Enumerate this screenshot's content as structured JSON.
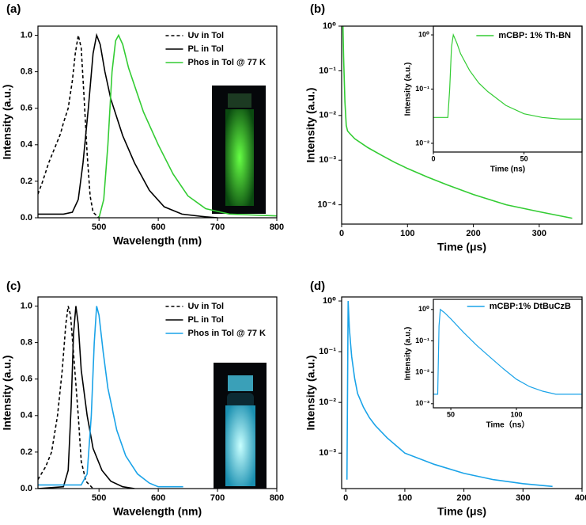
{
  "chart_data": [
    {
      "type": "line",
      "panel_label": "(a)",
      "x_label": "Wavelength (nm)",
      "y_label": "Intensity (a.u.)",
      "xlim": [
        397,
        800
      ],
      "xticks": [
        500,
        600,
        700,
        800
      ],
      "ylim": [
        0,
        1.05
      ],
      "yticks": [
        {
          "value": 0,
          "label": "0.0"
        },
        0.2,
        0.4,
        0.6,
        0.8,
        {
          "value": 1,
          "label": "1.0"
        }
      ],
      "log_y": false,
      "legend": "upper right",
      "series": [
        {
          "name": "Uv in Tol",
          "color": "#000000",
          "dash": true,
          "x": [
            397,
            405,
            415,
            425,
            435,
            440,
            448,
            455,
            460,
            465,
            470,
            475,
            480,
            485,
            490,
            500
          ],
          "values": [
            0.13,
            0.2,
            0.3,
            0.38,
            0.46,
            0.52,
            0.6,
            0.75,
            0.9,
            1.0,
            0.93,
            0.65,
            0.35,
            0.12,
            0.03,
            0.0
          ]
        },
        {
          "name": "PL in Tol",
          "color": "#000000",
          "dash": false,
          "x": [
            397,
            440,
            455,
            465,
            473,
            482,
            490,
            496,
            502,
            510,
            520,
            540,
            560,
            585,
            610,
            640,
            680,
            700
          ],
          "values": [
            0.02,
            0.02,
            0.03,
            0.1,
            0.3,
            0.6,
            0.9,
            1.0,
            0.95,
            0.8,
            0.65,
            0.45,
            0.3,
            0.15,
            0.06,
            0.02,
            0.005,
            0.0
          ]
        },
        {
          "name": "Phos in Tol @ 77 K",
          "color": "#33cc33",
          "dash": false,
          "x": [
            500,
            508,
            515,
            522,
            528,
            533,
            540,
            550,
            575,
            600,
            625,
            650,
            680,
            720,
            800
          ],
          "values": [
            0.0,
            0.1,
            0.4,
            0.8,
            0.97,
            1.0,
            0.95,
            0.82,
            0.58,
            0.4,
            0.24,
            0.12,
            0.05,
            0.02,
            0.01
          ]
        }
      ]
    },
    {
      "type": "line",
      "panel_label": "(b)",
      "x_label": "Time (μs)",
      "y_label": "Intensity (a.u.)",
      "xlim": [
        0,
        365
      ],
      "xticks": [
        0,
        100,
        200,
        300
      ],
      "ylim": [
        3.7e-05,
        1
      ],
      "yticks": [
        {
          "value": 0.0001,
          "label": "10⁻⁴"
        },
        {
          "value": 0.001,
          "label": "10⁻³"
        },
        {
          "value": 0.01,
          "label": "10⁻²"
        },
        {
          "value": 0.1,
          "label": "10⁻¹"
        },
        {
          "value": 1,
          "label": "10⁰"
        }
      ],
      "log_y": true,
      "legend": "upper right",
      "series": [
        {
          "name": "mCBP: 1% Th-BN",
          "color": "#33cc33",
          "dash": false,
          "x": [
            2,
            3,
            5,
            7,
            9,
            12,
            20,
            40,
            60,
            80,
            100,
            130,
            160,
            200,
            250,
            300,
            350
          ],
          "values": [
            1.0,
            0.2,
            0.02,
            0.006,
            0.0045,
            0.004,
            0.003,
            0.0019,
            0.0013,
            0.0009,
            0.00065,
            0.00042,
            0.00028,
            0.00017,
            0.0001,
            7e-05,
            5e-05
          ]
        }
      ]
    },
    {
      "type": "line",
      "inset": true,
      "x_label": "Time (ns)",
      "y_label": "Intensity (a.u.)",
      "xlim": [
        0,
        82
      ],
      "xticks": [
        0,
        50
      ],
      "ylim": [
        0.0069,
        1.45
      ],
      "yticks": [
        {
          "value": 0.01,
          "label": "10⁻²"
        },
        {
          "value": 0.1,
          "label": "10⁻¹"
        },
        {
          "value": 1,
          "label": "10⁰"
        }
      ],
      "log_y": true,
      "series": [
        {
          "color": "#33cc33",
          "dash": false,
          "x": [
            0,
            5,
            8,
            9,
            10,
            11,
            13,
            15,
            20,
            25,
            30,
            40,
            50,
            60,
            70,
            82
          ],
          "values": [
            0.03,
            0.03,
            0.03,
            0.1,
            0.6,
            1.0,
            0.7,
            0.45,
            0.22,
            0.13,
            0.09,
            0.05,
            0.035,
            0.03,
            0.028,
            0.028
          ]
        }
      ]
    },
    {
      "type": "line",
      "panel_label": "(c)",
      "x_label": "Wavelength (nm)",
      "y_label": "Intensity (a.u.)",
      "xlim": [
        397,
        800
      ],
      "xticks": [
        500,
        600,
        700,
        800
      ],
      "ylim": [
        0,
        1.05
      ],
      "yticks": [
        {
          "value": 0,
          "label": "0.0"
        },
        0.2,
        0.4,
        0.6,
        0.8,
        {
          "value": 1,
          "label": "1.0"
        }
      ],
      "log_y": false,
      "legend": "upper right",
      "series": [
        {
          "name": "Uv in Tol",
          "color": "#000000",
          "dash": true,
          "x": [
            397,
            410,
            420,
            430,
            438,
            444,
            448,
            452,
            458,
            465,
            470,
            478,
            490
          ],
          "values": [
            0.05,
            0.12,
            0.2,
            0.4,
            0.65,
            0.9,
            1.0,
            0.95,
            0.7,
            0.4,
            0.15,
            0.04,
            0.0
          ]
        },
        {
          "name": "PL in Tol",
          "color": "#000000",
          "dash": false,
          "x": [
            397,
            440,
            448,
            453,
            457,
            461,
            465,
            470,
            480,
            490,
            505,
            520,
            540,
            560
          ],
          "values": [
            0.0,
            0.01,
            0.1,
            0.45,
            0.85,
            1.0,
            0.9,
            0.65,
            0.4,
            0.22,
            0.1,
            0.04,
            0.01,
            0.0
          ]
        },
        {
          "name": "Phos in Tol @ 77 K",
          "color": "#1aa3e8",
          "dash": false,
          "x": [
            397,
            470,
            480,
            487,
            492,
            496,
            500,
            507,
            515,
            530,
            545,
            565,
            585,
            600,
            642
          ],
          "values": [
            0.02,
            0.02,
            0.08,
            0.4,
            0.8,
            1.0,
            0.95,
            0.75,
            0.55,
            0.32,
            0.18,
            0.08,
            0.03,
            0.01,
            0.01
          ]
        }
      ]
    },
    {
      "type": "line",
      "panel_label": "(d)",
      "x_label": "Time (μs)",
      "y_label": "Intensity (a.u.)",
      "xlim": [
        -7,
        400
      ],
      "xticks": [
        0,
        100,
        200,
        300,
        400
      ],
      "ylim": [
        0.0002,
        1.2
      ],
      "yticks": [
        {
          "value": 0.001,
          "label": "10⁻³"
        },
        {
          "value": 0.01,
          "label": "10⁻²"
        },
        {
          "value": 0.1,
          "label": "10⁻¹"
        },
        {
          "value": 1,
          "label": "10⁰"
        }
      ],
      "log_y": true,
      "legend": "upper right",
      "series": [
        {
          "name": "mCBP:1% DtBuCzB",
          "color": "#1aa3e8",
          "dash": false,
          "x": [
            2,
            4,
            6,
            8,
            10,
            15,
            20,
            30,
            40,
            50,
            70,
            100,
            150,
            200,
            250,
            300,
            350
          ],
          "values": [
            0.0003,
            1.0,
            0.3,
            0.15,
            0.08,
            0.03,
            0.015,
            0.008,
            0.005,
            0.0035,
            0.002,
            0.001,
            0.0006,
            0.0004,
            0.0003,
            0.00025,
            0.00022
          ]
        }
      ]
    },
    {
      "type": "line",
      "inset": true,
      "x_label": "Time（ns）",
      "y_label": "Intensity (a.u.)",
      "xlim": [
        36.7,
        150
      ],
      "xticks": [
        50,
        100
      ],
      "ylim": [
        0.00074,
        2.1
      ],
      "yticks": [
        {
          "value": 0.001,
          "label": "10⁻³"
        },
        {
          "value": 0.01,
          "label": "10⁻²"
        },
        {
          "value": 0.1,
          "label": "10⁻¹"
        },
        {
          "value": 1,
          "label": "10⁰"
        }
      ],
      "log_y": true,
      "series": [
        {
          "color": "#1aa3e8",
          "dash": false,
          "x": [
            37,
            40,
            41,
            42,
            45,
            50,
            60,
            70,
            80,
            90,
            100,
            110,
            120,
            130,
            140,
            150
          ],
          "values": [
            0.002,
            0.002,
            0.3,
            1.0,
            0.8,
            0.5,
            0.18,
            0.07,
            0.03,
            0.013,
            0.006,
            0.0035,
            0.0025,
            0.002,
            0.002,
            0.002
          ]
        }
      ]
    }
  ]
}
